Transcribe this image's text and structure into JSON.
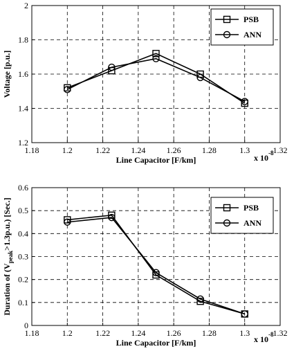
{
  "chart_data": [
    {
      "type": "line",
      "xlabel": "Line Capacitor [F/km]",
      "ylabel": "Voltage [p.u.]",
      "x_exponent": {
        "base": "x 10",
        "exp": "-8"
      },
      "xlim": [
        1.18,
        1.32
      ],
      "ylim": [
        1.2,
        2
      ],
      "xticks": [
        "1.18",
        "1.2",
        "1.22",
        "1.24",
        "1.26",
        "1.28",
        "1.3",
        "1.32"
      ],
      "yticks": [
        "1.2",
        "1.4",
        "1.6",
        "1.8",
        "2"
      ],
      "grid": true,
      "legend": "top-right",
      "x": [
        1.2,
        1.225,
        1.25,
        1.275,
        1.3
      ],
      "series": [
        {
          "name": "PSB",
          "marker": "square",
          "values": [
            1.52,
            1.62,
            1.72,
            1.6,
            1.43
          ]
        },
        {
          "name": "ANN",
          "marker": "circle",
          "values": [
            1.51,
            1.64,
            1.69,
            1.58,
            1.44
          ]
        }
      ]
    },
    {
      "type": "line",
      "xlabel": "Line Capacitor [F/km]",
      "ylabel": "Duration of (V",
      "ylabel_sub": "peak",
      "ylabel_tail": ">1.3p.u.) [Sec.]",
      "x_exponent": {
        "base": "x 10",
        "exp": "-8"
      },
      "xlim": [
        1.18,
        1.32
      ],
      "ylim": [
        0,
        0.6
      ],
      "xticks": [
        "1.18",
        "1.2",
        "1.22",
        "1.24",
        "1.26",
        "1.28",
        "1.3",
        "1.32"
      ],
      "yticks": [
        "0",
        "0.1",
        "0.2",
        "0.3",
        "0.4",
        "0.5",
        "0.6"
      ],
      "grid": true,
      "legend": "top-right",
      "x": [
        1.2,
        1.225,
        1.25,
        1.275,
        1.3
      ],
      "series": [
        {
          "name": "PSB",
          "marker": "square",
          "values": [
            0.46,
            0.48,
            0.22,
            0.105,
            0.05
          ]
        },
        {
          "name": "ANN",
          "marker": "circle",
          "values": [
            0.45,
            0.47,
            0.23,
            0.115,
            0.05
          ]
        }
      ]
    }
  ]
}
